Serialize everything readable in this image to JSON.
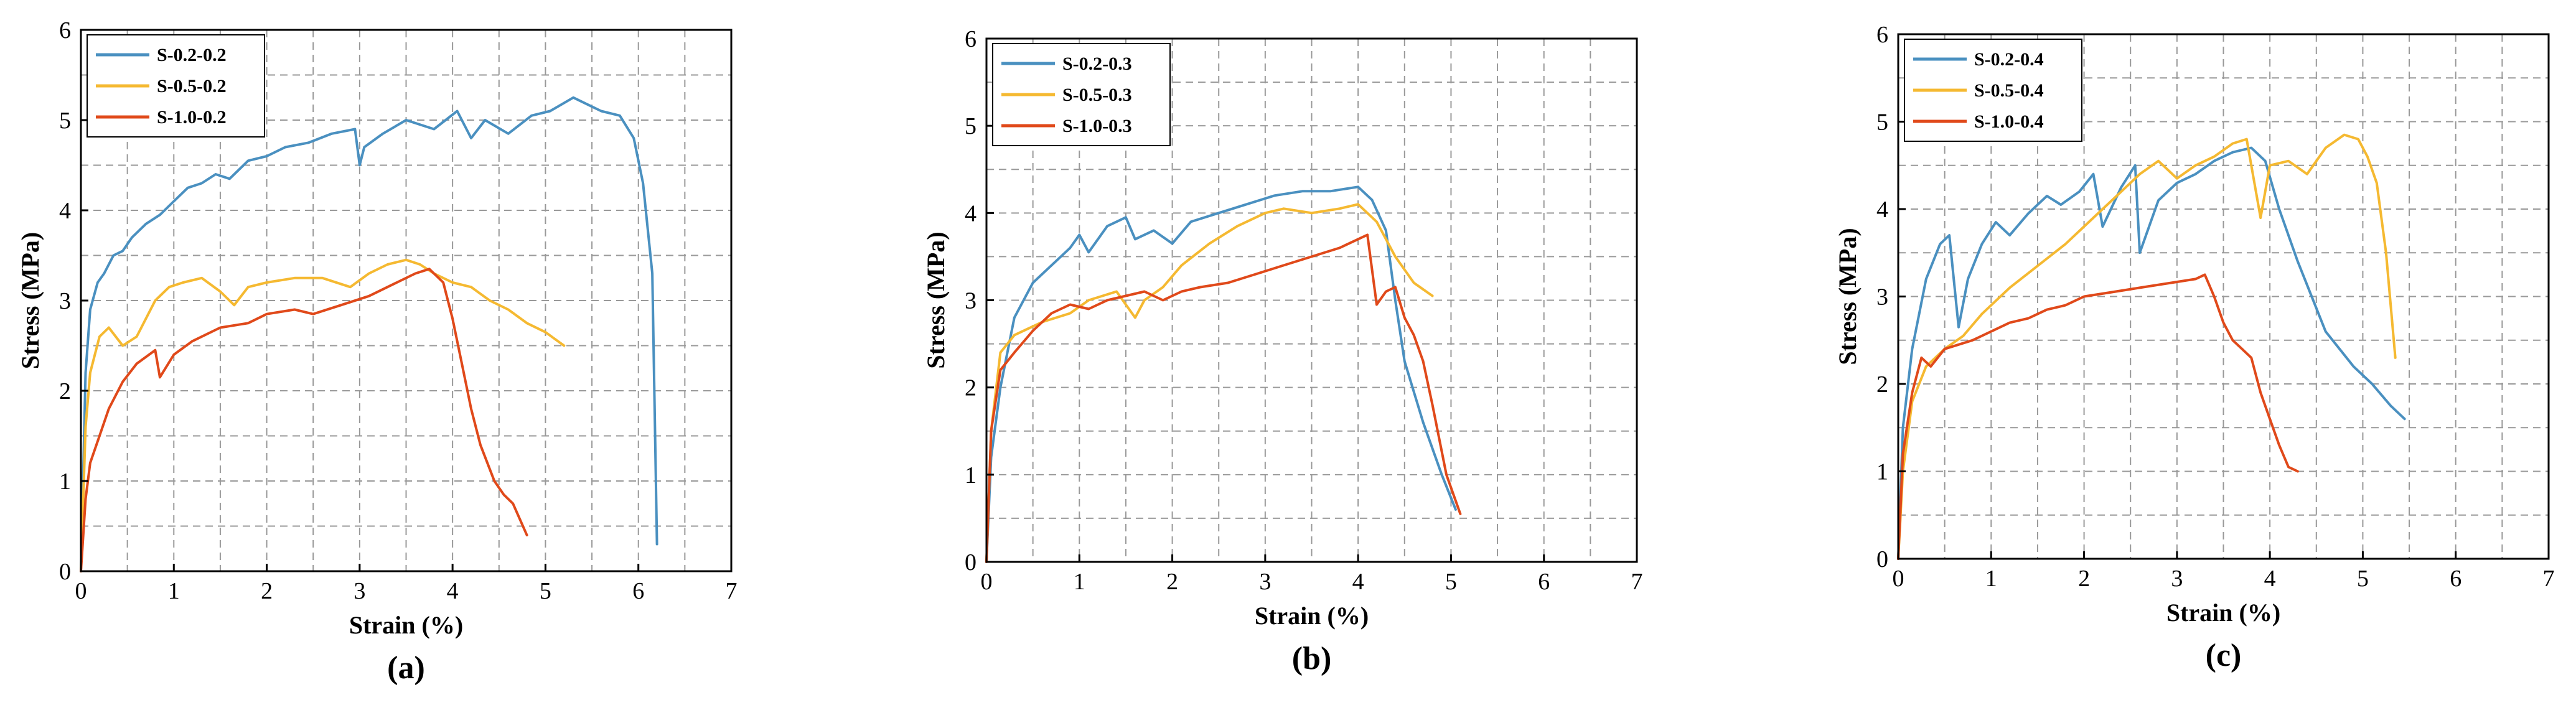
{
  "colors": {
    "blue": "#4a90c0",
    "yellow": "#f5b931",
    "red": "#e0491a"
  },
  "chart_data": [
    {
      "type": "line",
      "caption": "(a)",
      "xlabel": "Strain (%)",
      "ylabel": "Stress (MPa)",
      "xlim": [
        0,
        7
      ],
      "ylim": [
        0,
        6
      ],
      "xticks": [
        "0",
        "1",
        "2",
        "3",
        "4",
        "5",
        "6",
        "7"
      ],
      "yticks": [
        "0",
        "1",
        "2",
        "3",
        "4",
        "5",
        "6"
      ],
      "grid": true,
      "legend_position": "top-left",
      "series": [
        {
          "name": "S-0.2-0.2",
          "color": "blue",
          "x": [
            0,
            0.05,
            0.1,
            0.18,
            0.25,
            0.35,
            0.45,
            0.55,
            0.7,
            0.85,
            1.0,
            1.15,
            1.3,
            1.45,
            1.6,
            1.8,
            2.0,
            2.2,
            2.45,
            2.7,
            2.95,
            3.0,
            3.05,
            3.25,
            3.5,
            3.8,
            4.05,
            4.2,
            4.35,
            4.6,
            4.85,
            5.05,
            5.3,
            5.5,
            5.6,
            5.8,
            5.95,
            6.05,
            6.15,
            6.2
          ],
          "y": [
            0,
            2.2,
            2.9,
            3.2,
            3.3,
            3.5,
            3.55,
            3.7,
            3.85,
            3.95,
            4.1,
            4.25,
            4.3,
            4.4,
            4.35,
            4.55,
            4.6,
            4.7,
            4.75,
            4.85,
            4.9,
            4.5,
            4.7,
            4.85,
            5.0,
            4.9,
            5.1,
            4.8,
            5.0,
            4.85,
            5.05,
            5.1,
            5.25,
            5.15,
            5.1,
            5.05,
            4.8,
            4.3,
            3.3,
            0.3
          ]
        },
        {
          "name": "S-0.5-0.2",
          "color": "yellow",
          "x": [
            0,
            0.05,
            0.1,
            0.2,
            0.3,
            0.45,
            0.6,
            0.8,
            0.95,
            1.1,
            1.3,
            1.5,
            1.65,
            1.8,
            2.0,
            2.3,
            2.6,
            2.9,
            3.1,
            3.3,
            3.5,
            3.65,
            3.8,
            4.0,
            4.2,
            4.4,
            4.6,
            4.8,
            5.0,
            5.2
          ],
          "y": [
            0,
            1.6,
            2.2,
            2.6,
            2.7,
            2.5,
            2.6,
            3.0,
            3.15,
            3.2,
            3.25,
            3.1,
            2.95,
            3.15,
            3.2,
            3.25,
            3.25,
            3.15,
            3.3,
            3.4,
            3.45,
            3.4,
            3.3,
            3.2,
            3.15,
            3.0,
            2.9,
            2.75,
            2.65,
            2.5
          ]
        },
        {
          "name": "S-1.0-0.2",
          "color": "red",
          "x": [
            0,
            0.05,
            0.1,
            0.2,
            0.3,
            0.45,
            0.6,
            0.8,
            0.85,
            1.0,
            1.2,
            1.5,
            1.8,
            2.0,
            2.3,
            2.5,
            2.8,
            3.1,
            3.4,
            3.6,
            3.75,
            3.9,
            4.0,
            4.1,
            4.2,
            4.3,
            4.45,
            4.55,
            4.65,
            4.8
          ],
          "y": [
            0,
            0.8,
            1.2,
            1.5,
            1.8,
            2.1,
            2.3,
            2.45,
            2.15,
            2.4,
            2.55,
            2.7,
            2.75,
            2.85,
            2.9,
            2.85,
            2.95,
            3.05,
            3.2,
            3.3,
            3.35,
            3.2,
            2.8,
            2.3,
            1.8,
            1.4,
            1.0,
            0.85,
            0.75,
            0.4
          ]
        }
      ]
    },
    {
      "type": "line",
      "caption": "(b)",
      "xlabel": "Strain (%)",
      "ylabel": "Stress (MPa)",
      "xlim": [
        0,
        7
      ],
      "ylim": [
        0,
        6
      ],
      "xticks": [
        "0",
        "1",
        "2",
        "3",
        "4",
        "5",
        "6",
        "7"
      ],
      "yticks": [
        "0",
        "1",
        "2",
        "3",
        "4",
        "5",
        "6"
      ],
      "grid": true,
      "legend_position": "top-left",
      "series": [
        {
          "name": "S-0.2-0.3",
          "color": "blue",
          "x": [
            0,
            0.05,
            0.15,
            0.3,
            0.5,
            0.7,
            0.9,
            1.0,
            1.1,
            1.3,
            1.5,
            1.6,
            1.8,
            2.0,
            2.2,
            2.5,
            2.8,
            3.1,
            3.4,
            3.7,
            4.0,
            4.15,
            4.3,
            4.4,
            4.5,
            4.7,
            4.9,
            5.05
          ],
          "y": [
            0,
            1.2,
            2.0,
            2.8,
            3.2,
            3.4,
            3.6,
            3.75,
            3.55,
            3.85,
            3.95,
            3.7,
            3.8,
            3.65,
            3.9,
            4.0,
            4.1,
            4.2,
            4.25,
            4.25,
            4.3,
            4.15,
            3.8,
            3.0,
            2.3,
            1.6,
            1.0,
            0.6
          ]
        },
        {
          "name": "S-0.5-0.3",
          "color": "yellow",
          "x": [
            0,
            0.05,
            0.15,
            0.3,
            0.6,
            0.9,
            1.1,
            1.4,
            1.6,
            1.7,
            1.9,
            2.1,
            2.4,
            2.7,
            3.0,
            3.2,
            3.5,
            3.8,
            4.0,
            4.2,
            4.4,
            4.6,
            4.8
          ],
          "y": [
            0,
            1.5,
            2.4,
            2.6,
            2.75,
            2.85,
            3.0,
            3.1,
            2.8,
            3.0,
            3.15,
            3.4,
            3.65,
            3.85,
            4.0,
            4.05,
            4.0,
            4.05,
            4.1,
            3.9,
            3.5,
            3.2,
            3.05
          ]
        },
        {
          "name": "S-1.0-0.3",
          "color": "red",
          "x": [
            0,
            0.05,
            0.15,
            0.3,
            0.5,
            0.7,
            0.9,
            1.1,
            1.3,
            1.5,
            1.7,
            1.9,
            2.1,
            2.3,
            2.6,
            2.9,
            3.2,
            3.5,
            3.8,
            4.0,
            4.1,
            4.2,
            4.3,
            4.4,
            4.5,
            4.6,
            4.7,
            4.8,
            4.95,
            5.1
          ],
          "y": [
            0,
            1.5,
            2.2,
            2.4,
            2.65,
            2.85,
            2.95,
            2.9,
            3.0,
            3.05,
            3.1,
            3.0,
            3.1,
            3.15,
            3.2,
            3.3,
            3.4,
            3.5,
            3.6,
            3.7,
            3.75,
            2.95,
            3.1,
            3.15,
            2.8,
            2.6,
            2.3,
            1.8,
            1.0,
            0.55
          ]
        }
      ]
    },
    {
      "type": "line",
      "caption": "(c)",
      "xlabel": "Strain (%)",
      "ylabel": "Stress (MPa)",
      "xlim": [
        0,
        7
      ],
      "ylim": [
        0,
        6
      ],
      "xticks": [
        "0",
        "1",
        "2",
        "3",
        "4",
        "5",
        "6",
        "7"
      ],
      "yticks": [
        "0",
        "1",
        "2",
        "3",
        "4",
        "5",
        "6"
      ],
      "grid": true,
      "legend_position": "top-left",
      "series": [
        {
          "name": "S-0.2-0.4",
          "color": "blue",
          "x": [
            0,
            0.05,
            0.15,
            0.3,
            0.45,
            0.55,
            0.65,
            0.75,
            0.9,
            1.05,
            1.2,
            1.4,
            1.6,
            1.75,
            1.95,
            2.1,
            2.2,
            2.4,
            2.55,
            2.6,
            2.8,
            3.0,
            3.2,
            3.4,
            3.6,
            3.8,
            3.95,
            4.1,
            4.3,
            4.6,
            4.9,
            5.1,
            5.3,
            5.45
          ],
          "y": [
            0,
            1.5,
            2.4,
            3.2,
            3.6,
            3.7,
            2.65,
            3.2,
            3.6,
            3.85,
            3.7,
            3.95,
            4.15,
            4.05,
            4.2,
            4.4,
            3.8,
            4.25,
            4.5,
            3.5,
            4.1,
            4.3,
            4.4,
            4.55,
            4.65,
            4.7,
            4.55,
            4.0,
            3.4,
            2.6,
            2.2,
            2.0,
            1.75,
            1.6
          ]
        },
        {
          "name": "S-0.5-0.4",
          "color": "yellow",
          "x": [
            0,
            0.05,
            0.15,
            0.3,
            0.5,
            0.7,
            0.9,
            1.2,
            1.5,
            1.8,
            2.1,
            2.4,
            2.6,
            2.8,
            3.0,
            3.2,
            3.4,
            3.6,
            3.75,
            3.9,
            4.0,
            4.2,
            4.4,
            4.6,
            4.8,
            4.95,
            5.05,
            5.15,
            5.25,
            5.35
          ],
          "y": [
            0,
            1.0,
            1.8,
            2.2,
            2.4,
            2.55,
            2.8,
            3.1,
            3.35,
            3.6,
            3.9,
            4.2,
            4.4,
            4.55,
            4.35,
            4.5,
            4.6,
            4.75,
            4.8,
            3.9,
            4.5,
            4.55,
            4.4,
            4.7,
            4.85,
            4.8,
            4.6,
            4.3,
            3.5,
            2.3
          ]
        },
        {
          "name": "S-1.0-0.4",
          "color": "red",
          "x": [
            0,
            0.05,
            0.15,
            0.25,
            0.35,
            0.5,
            0.65,
            0.8,
            1.0,
            1.2,
            1.4,
            1.6,
            1.8,
            2.0,
            2.3,
            2.6,
            2.9,
            3.2,
            3.3,
            3.4,
            3.5,
            3.6,
            3.7,
            3.8,
            3.9,
            4.0,
            4.1,
            4.2,
            4.3
          ],
          "y": [
            0,
            1.2,
            1.9,
            2.3,
            2.2,
            2.4,
            2.45,
            2.5,
            2.6,
            2.7,
            2.75,
            2.85,
            2.9,
            3.0,
            3.05,
            3.1,
            3.15,
            3.2,
            3.25,
            3.0,
            2.7,
            2.5,
            2.4,
            2.3,
            1.9,
            1.6,
            1.3,
            1.05,
            1.0
          ]
        }
      ]
    }
  ]
}
